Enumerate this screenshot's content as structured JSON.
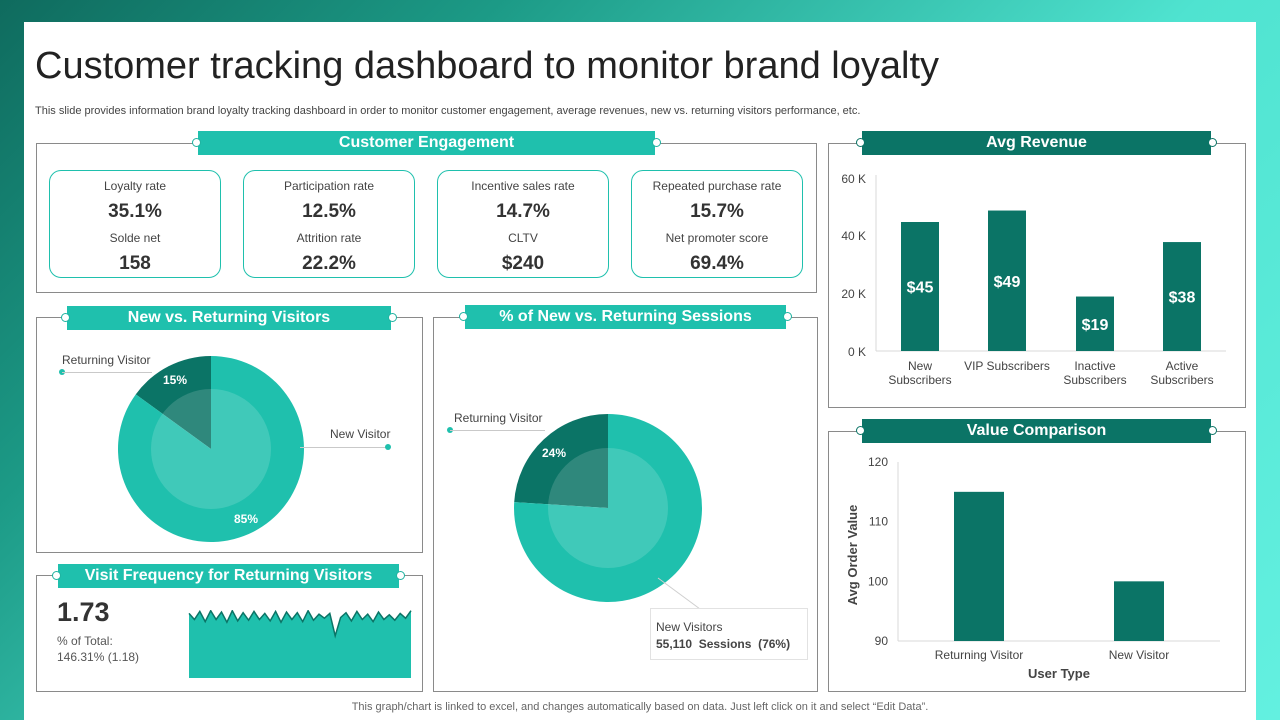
{
  "title": "Customer tracking dashboard to monitor brand loyalty",
  "subtitle": "This slide provides information brand loyalty tracking dashboard in order to monitor customer engagement, average revenues, new vs. returning visitors performance, etc.",
  "footer": "This graph/chart is linked to excel, and changes automatically based on data. Just left click on it and select “Edit Data”.",
  "colors": {
    "teal_light": "#1fc0ad",
    "teal_dark": "#0b7466",
    "teal_mid": "#2ed3bf"
  },
  "engagement": {
    "heading": "Customer Engagement",
    "cards": [
      {
        "top_label": "Loyalty rate",
        "top_value": "35.1%",
        "bottom_label": "Solde net",
        "bottom_value": "158"
      },
      {
        "top_label": "Participation rate",
        "top_value": "12.5%",
        "bottom_label": "Attrition rate",
        "bottom_value": "22.2%"
      },
      {
        "top_label": "Incentive  sales rate",
        "top_value": "14.7%",
        "bottom_label": "CLTV",
        "bottom_value": "$240"
      },
      {
        "top_label": "Repeated purchase rate",
        "top_value": "15.7%",
        "bottom_label": "Net promoter  score",
        "bottom_value": "69.4%"
      }
    ]
  },
  "visitors": {
    "heading": "New vs. Returning Visitors",
    "returning_label": "Returning Visitor",
    "new_label": "New Visitor",
    "returning_pct_label": "15%",
    "new_pct_label": "85%"
  },
  "sessions": {
    "heading": "% of New vs. Returning Sessions",
    "returning_label": "Returning Visitor",
    "returning_pct_label": "24%",
    "new_visitors_label": "New Visitors",
    "new_visitors_detail": "55,110  Sessions  (76%)"
  },
  "frequency": {
    "heading": "Visit Frequency for Returning Visitors",
    "value": "1.73",
    "total_label": "% of Total:",
    "total_value": "146.31% (1.18)"
  },
  "avg_revenue": {
    "heading": "Avg Revenue",
    "y_ticks": [
      "60 K",
      "40 K",
      "20 K",
      "0 K"
    ]
  },
  "value_comparison": {
    "heading": "Value Comparison"
  },
  "chart_data": [
    {
      "type": "pie",
      "title": "New vs. Returning Visitors",
      "categories": [
        "Returning Visitor",
        "New Visitor"
      ],
      "values": [
        15,
        85
      ]
    },
    {
      "type": "pie",
      "title": "% of New vs. Returning Sessions",
      "categories": [
        "Returning Visitor",
        "New Visitors"
      ],
      "values": [
        24,
        76
      ]
    },
    {
      "type": "area",
      "title": "Visit Frequency for Returning Visitors",
      "values": [
        9.5,
        8.6,
        9.8,
        8.3,
        9.9,
        8.6,
        9.7,
        8.2,
        9.9,
        8.4,
        9.6,
        8.5,
        9.8,
        8.6,
        9.5,
        8.4,
        9.8,
        8.2,
        9.7,
        8.6,
        9.6,
        8.3,
        9.9,
        8.5,
        9.4,
        8.8,
        9.5,
        6.2,
        8.9,
        9.6,
        8.4,
        9.8,
        8.6,
        9.4,
        8.3,
        9.7,
        8.6,
        9.3,
        8.5,
        9.5,
        8.8,
        9.9
      ],
      "ylim": [
        0,
        10
      ]
    },
    {
      "type": "bar",
      "title": "Avg Revenue",
      "categories": [
        "New Subscribers",
        "VIP Subscribers",
        "Inactive Subscribers",
        "Active Subscribers"
      ],
      "values": [
        45,
        49,
        19,
        38
      ],
      "data_labels": [
        "$45",
        "$49",
        "$19",
        "$38"
      ],
      "ylim": [
        0,
        60
      ]
    },
    {
      "type": "bar",
      "title": "Value Comparison",
      "xlabel": "User Type",
      "ylabel": "Avg Order Value",
      "categories": [
        "Returning Visitor",
        "New Visitor"
      ],
      "values": [
        115,
        100
      ],
      "yticks": [
        90,
        100,
        110,
        120
      ],
      "ylim": [
        90,
        120
      ]
    }
  ]
}
